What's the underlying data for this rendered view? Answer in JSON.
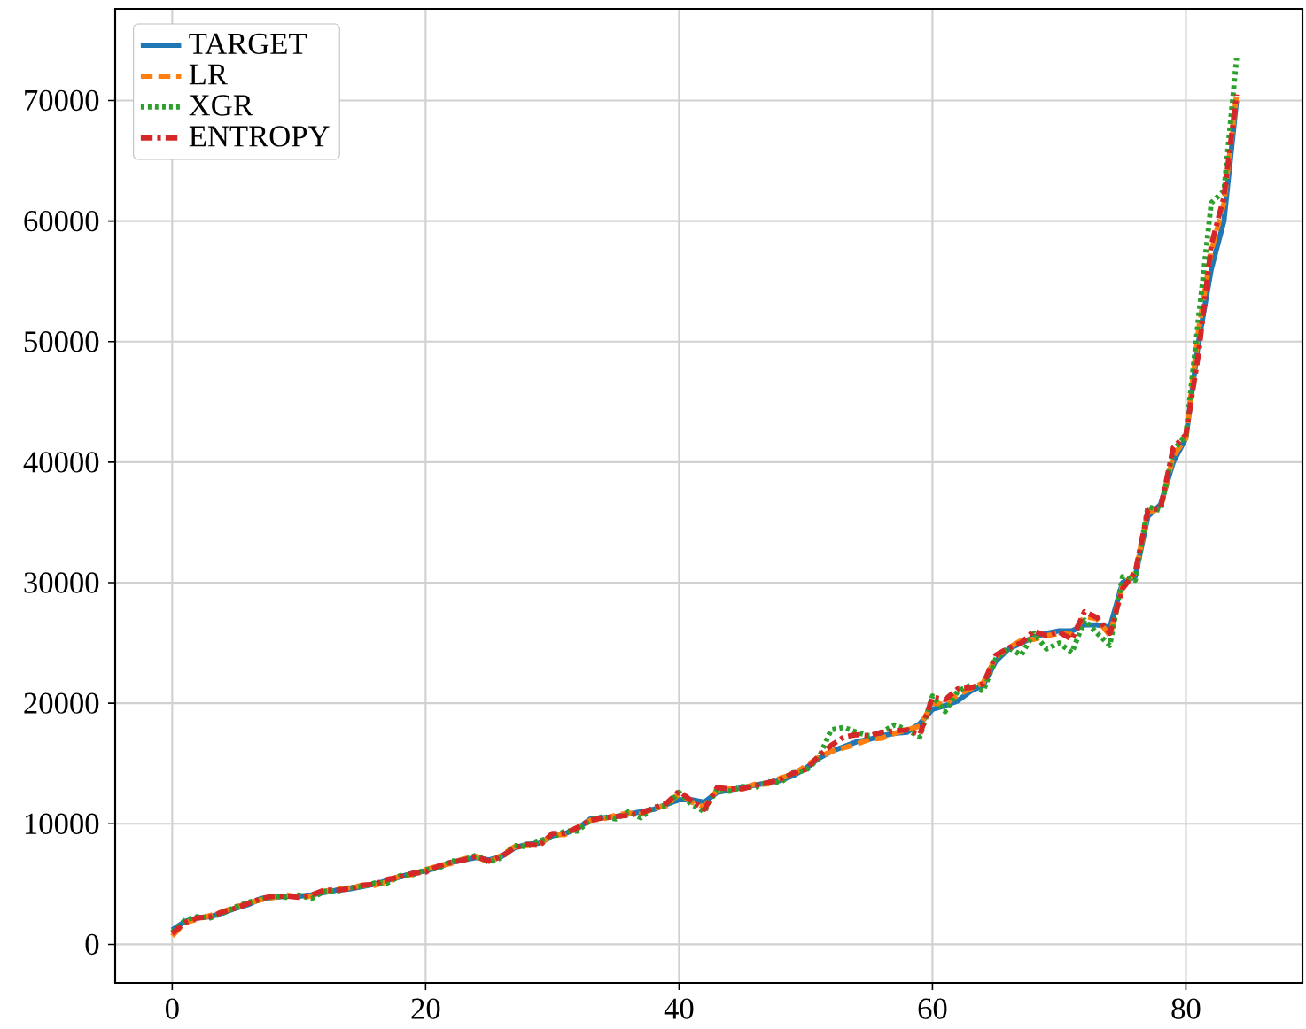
{
  "chart_data": {
    "type": "line",
    "grid": true,
    "legend": "top left",
    "xlim": [
      -4.5,
      89.2
    ],
    "ylim": [
      -3200,
      77600
    ],
    "xticks": [
      0,
      20,
      40,
      60,
      80
    ],
    "yticks": [
      0,
      10000,
      20000,
      30000,
      40000,
      50000,
      60000,
      70000
    ],
    "x": [
      0,
      1,
      2,
      3,
      4,
      5,
      6,
      7,
      8,
      9,
      10,
      11,
      12,
      13,
      14,
      15,
      16,
      17,
      18,
      19,
      20,
      21,
      22,
      23,
      24,
      25,
      26,
      27,
      28,
      29,
      30,
      31,
      32,
      33,
      34,
      35,
      36,
      37,
      38,
      39,
      40,
      41,
      42,
      43,
      44,
      45,
      46,
      47,
      48,
      49,
      50,
      51,
      52,
      53,
      54,
      55,
      56,
      57,
      58,
      59,
      60,
      61,
      62,
      63,
      64,
      65,
      66,
      67,
      68,
      69,
      70,
      71,
      72,
      73,
      74,
      75,
      76,
      77,
      78,
      79,
      80,
      81,
      82,
      83,
      84
    ],
    "series": [
      {
        "name": "TARGET",
        "color": "#1f77b4",
        "line_style": "solid",
        "values": [
          1200,
          1900,
          2200,
          2300,
          2600,
          3000,
          3300,
          3800,
          3900,
          4000,
          4000,
          4100,
          4300,
          4500,
          4600,
          4800,
          5000,
          5300,
          5600,
          5900,
          6100,
          6400,
          6800,
          7000,
          7200,
          7000,
          7300,
          8000,
          8300,
          8400,
          9000,
          9200,
          9600,
          10400,
          10500,
          10600,
          10800,
          11000,
          11200,
          11600,
          12000,
          12000,
          11800,
          12600,
          12800,
          13000,
          13200,
          13400,
          13600,
          14000,
          14600,
          15400,
          16000,
          16400,
          16800,
          17000,
          17300,
          17500,
          17600,
          18300,
          19500,
          19800,
          20200,
          21000,
          21500,
          23500,
          24500,
          25000,
          25500,
          25800,
          26000,
          26000,
          26500,
          26500,
          26300,
          30000,
          30500,
          35500,
          36500,
          40000,
          42000,
          50000,
          56000,
          60000,
          70000
        ]
      },
      {
        "name": "LR",
        "color": "#ff7f0e",
        "line_style": "dashed",
        "values": [
          700,
          1800,
          2100,
          2400,
          2700,
          3100,
          3400,
          3700,
          3900,
          4100,
          3900,
          4000,
          4400,
          4600,
          4700,
          4900,
          4900,
          5200,
          5700,
          5800,
          6200,
          6500,
          6700,
          7100,
          7300,
          6800,
          7400,
          8100,
          8200,
          8300,
          9100,
          9100,
          9700,
          10300,
          10400,
          10700,
          10900,
          10800,
          11300,
          11500,
          12500,
          11800,
          11400,
          12800,
          12900,
          12900,
          13300,
          13300,
          13800,
          14100,
          14800,
          15500,
          16000,
          16300,
          16600,
          17000,
          17100,
          17500,
          17800,
          18100,
          20000,
          19900,
          20700,
          21200,
          21700,
          23800,
          24600,
          25200,
          25300,
          25600,
          25800,
          25700,
          27200,
          27000,
          25600,
          29800,
          30800,
          35800,
          36200,
          40500,
          42000,
          51000,
          57500,
          61500,
          70500
        ]
      },
      {
        "name": "XGR",
        "color": "#2ca02c",
        "line_style": "dotted",
        "values": [
          1000,
          2000,
          2300,
          2200,
          2600,
          3100,
          3500,
          3700,
          4000,
          3900,
          4100,
          3800,
          4400,
          4400,
          4700,
          4800,
          5100,
          5100,
          5700,
          5800,
          6200,
          6300,
          6900,
          7000,
          7400,
          6800,
          7200,
          8200,
          8100,
          8600,
          8900,
          9400,
          9400,
          10300,
          10600,
          10400,
          11000,
          10500,
          11400,
          11500,
          12600,
          11600,
          11000,
          12900,
          12700,
          13100,
          13000,
          13500,
          13400,
          14300,
          14400,
          15400,
          17800,
          18000,
          17600,
          17300,
          17600,
          18200,
          17800,
          17200,
          20600,
          19300,
          21000,
          21500,
          21000,
          23700,
          24600,
          24000,
          25800,
          24500,
          25000,
          24200,
          26900,
          25800,
          24800,
          30500,
          30200,
          36300,
          36000,
          41000,
          42200,
          52000,
          61500,
          62500,
          73500
        ]
      },
      {
        "name": "ENTROPY",
        "color": "#d62728",
        "line_style": "dashdot",
        "values": [
          900,
          1800,
          2200,
          2300,
          2700,
          3000,
          3400,
          3800,
          4000,
          4000,
          3900,
          4100,
          4500,
          4500,
          4600,
          4900,
          5000,
          5400,
          5600,
          5900,
          6000,
          6500,
          6800,
          7000,
          7300,
          6900,
          7300,
          8000,
          8300,
          8200,
          9200,
          9200,
          9700,
          10300,
          10500,
          10600,
          10700,
          10900,
          11300,
          11700,
          12700,
          11900,
          11200,
          13000,
          12900,
          12900,
          13200,
          13400,
          13700,
          14200,
          14500,
          15600,
          16500,
          17200,
          17400,
          17300,
          17600,
          17700,
          17800,
          17400,
          20500,
          20300,
          21200,
          21300,
          21600,
          24000,
          24600,
          25000,
          26000,
          25600,
          25900,
          25300,
          27600,
          27100,
          25800,
          29500,
          30900,
          36000,
          36200,
          41200,
          42300,
          49000,
          58000,
          62000,
          70500
        ]
      }
    ]
  }
}
